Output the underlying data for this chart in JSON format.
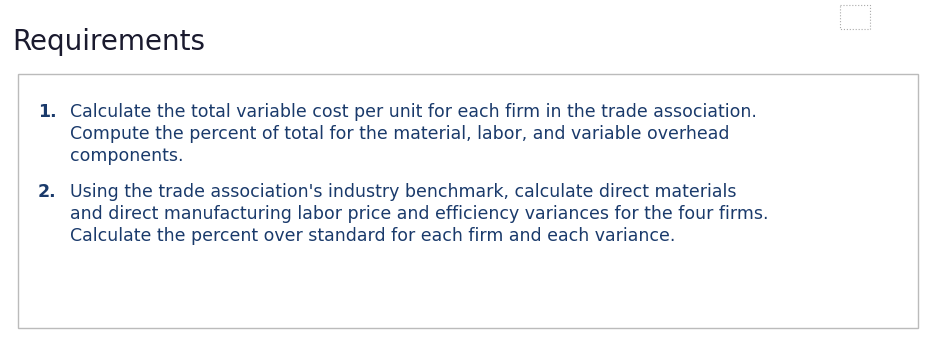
{
  "title": "Requirements",
  "title_color": "#1a1a2e",
  "title_fontsize": 20,
  "title_fontweight": "normal",
  "background_color": "#ffffff",
  "box_edge_color": "#bbbbbb",
  "text_color": "#1a3a6b",
  "item1_number": "1.",
  "item1_line1": "Calculate the total variable cost per unit for each firm in the trade association.",
  "item1_line2": "Compute the percent of total for the material, labor, and variable overhead",
  "item1_line3": "components.",
  "item2_number": "2.",
  "item2_line1": "Using the trade association's industry benchmark, calculate direct materials",
  "item2_line2": "and direct manufacturing labor price and efficiency variances for the four firms.",
  "item2_line3": "Calculate the percent over standard for each firm and each variance.",
  "fontsize": 12.5,
  "num_fontsize": 12.5
}
